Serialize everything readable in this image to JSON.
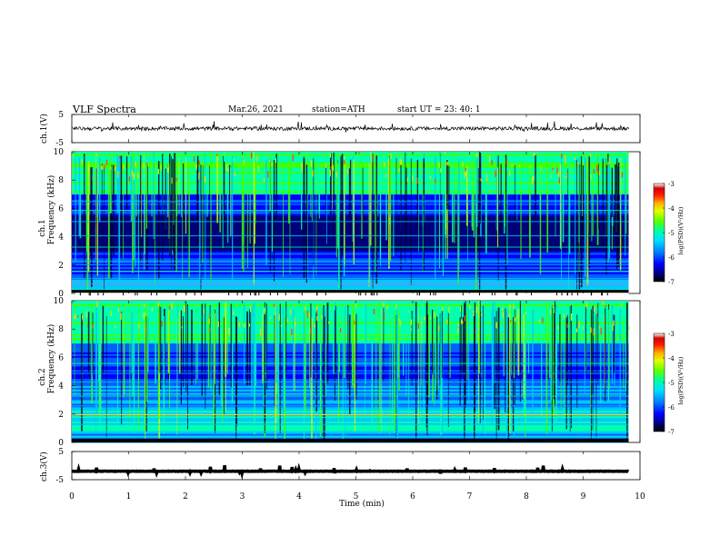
{
  "header": {
    "title": "VLF  Spectra",
    "date": "Mar.26, 2021",
    "station": "station=ATH",
    "start": "start  UT  =   23: 40: 1"
  },
  "chart_data": [
    {
      "type": "line",
      "panel": "ch1-waveform",
      "ylabel": "ch.1(V)",
      "ylim": [
        -5,
        5
      ],
      "yticks": [
        "5",
        "-5"
      ],
      "xlim": [
        0,
        10
      ],
      "baseline": 0,
      "color": "#000000"
    },
    {
      "type": "heatmap",
      "panel": "ch1-spectrogram",
      "ylabel": "ch.1\nFrequency (kHz)",
      "ylim": [
        0,
        10
      ],
      "yticks": [
        "0",
        "2",
        "4",
        "6",
        "8",
        "10"
      ],
      "xlim": [
        0,
        9.8
      ],
      "colorbar": {
        "label": "log(PSD)(V²/Hz)",
        "ticks": [
          "-3",
          "-4",
          "-5",
          "-6",
          "-7"
        ],
        "range": [
          -7,
          -3
        ]
      }
    },
    {
      "type": "heatmap",
      "panel": "ch2-spectrogram",
      "ylabel": "ch.2\nFrequency (kHz)",
      "ylim": [
        0,
        10
      ],
      "yticks": [
        "0",
        "2",
        "4",
        "6",
        "8",
        "10"
      ],
      "xlim": [
        0,
        9.8
      ],
      "colorbar": {
        "label": "log(PSD)(V²/Hz)",
        "ticks": [
          "-3",
          "-4",
          "-5",
          "-6",
          "-7"
        ],
        "range": [
          -7,
          -3
        ]
      }
    },
    {
      "type": "line",
      "panel": "ch3-waveform",
      "ylabel": "ch.3(V)",
      "ylim": [
        -5,
        5
      ],
      "yticks": [
        "5",
        "-5"
      ],
      "xlim": [
        0,
        10
      ],
      "baseline": -2,
      "color": "#000000"
    }
  ],
  "xaxis": {
    "label": "Time  (min)",
    "ticks": [
      "0",
      "1",
      "2",
      "3",
      "4",
      "5",
      "6",
      "7",
      "8",
      "9",
      "10"
    ],
    "range": [
      0,
      10
    ]
  },
  "colors": {
    "colormap": [
      "#000000",
      "#00007a",
      "#0000ff",
      "#0060ff",
      "#00c8ff",
      "#00ffb0",
      "#40ff00",
      "#c8ff00",
      "#ffd000",
      "#ff4000",
      "#d00000",
      "#ffffff"
    ]
  }
}
